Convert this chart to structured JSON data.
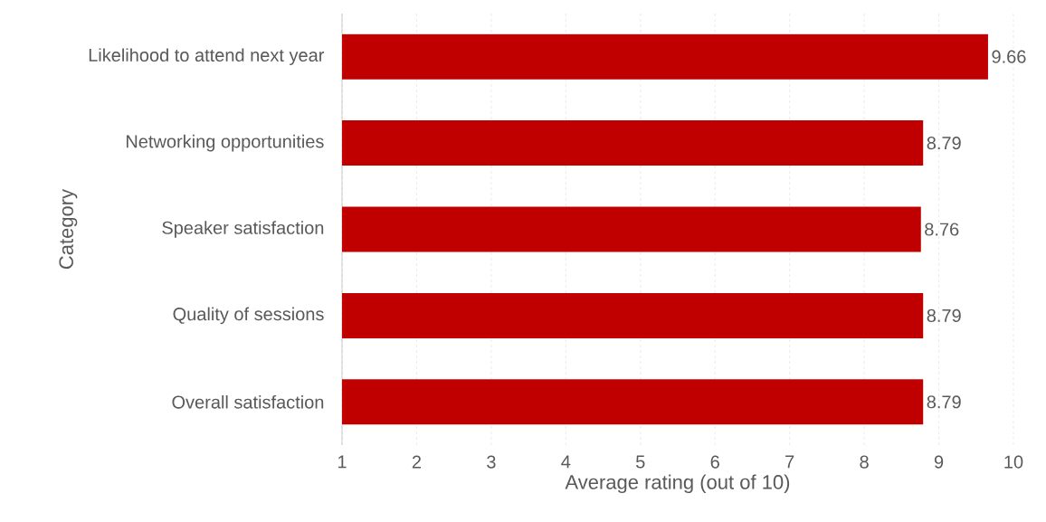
{
  "chart_data": {
    "type": "bar",
    "orientation": "horizontal",
    "xlabel": "Average rating (out of 10)",
    "ylabel": "Category",
    "categories": [
      "Likelihood to attend next year",
      "Networking opportunities",
      "Speaker satisfaction",
      "Quality of sessions",
      "Overall satisfaction"
    ],
    "values": [
      9.66,
      8.79,
      8.76,
      8.79,
      8.79
    ],
    "value_labels": [
      "9.66",
      "8.79",
      "8.76",
      "8.79",
      "8.79"
    ],
    "color": "#c00000",
    "xlim": [
      1,
      10
    ],
    "xticks": [
      1,
      2,
      3,
      4,
      5,
      6,
      7,
      8,
      9,
      10
    ],
    "grid": "x"
  }
}
